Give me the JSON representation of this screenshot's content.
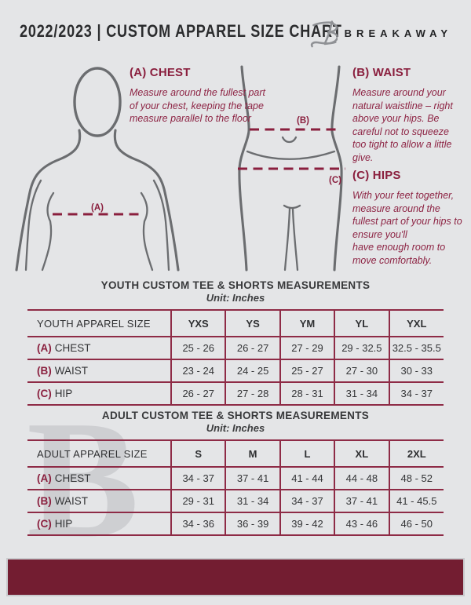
{
  "colors": {
    "background": "#e4e5e7",
    "accent_maroon": "#8a1f3e",
    "table_border": "#8e2b46",
    "footer_bar": "#731d31",
    "figure_gray": "#6b6d70"
  },
  "header": {
    "title": "2022/2023  |  CUSTOM APPAREL SIZE CHART",
    "brand": "BREAKAWAY",
    "logo_icon": "breakaway-b-monogram"
  },
  "guide": {
    "chest": {
      "marker": "(A)",
      "heading": "(A) CHEST",
      "body": "Measure around the fullest part of your chest, keeping the tape measure parallel to the floor"
    },
    "waist": {
      "marker": "(B)",
      "heading": "(B) WAIST",
      "body": "Measure around your natural waistline – right above your hips. Be careful not to squeeze too tight to allow a little give."
    },
    "hips": {
      "marker": "(C)",
      "heading": "(C) HIPS",
      "body": "With your feet together, measure around the fullest part of your hips to ensure you'll\nhave enough room to move comfortably."
    }
  },
  "tables": [
    {
      "type": "table",
      "title": "YOUTH CUSTOM TEE & SHORTS MEASUREMENTS",
      "unit": "Unit: Inches",
      "columns": [
        "YOUTH APPAREL SIZE",
        "YXS",
        "YS",
        "YM",
        "YL",
        "YXL"
      ],
      "rows": [
        {
          "prefix": "(A)",
          "label": "CHEST",
          "values": [
            "25 - 26",
            "26 - 27",
            "27 - 29",
            "29 - 32.5",
            "32.5 - 35.5"
          ]
        },
        {
          "prefix": "(B)",
          "label": "WAIST",
          "values": [
            "23 - 24",
            "24 - 25",
            "25 - 27",
            "27 - 30",
            "30 - 33"
          ]
        },
        {
          "prefix": "(C)",
          "label": "HIP",
          "values": [
            "26 - 27",
            "27 - 28",
            "28 - 31",
            "31 - 34",
            "34 - 37"
          ]
        }
      ]
    },
    {
      "type": "table",
      "title": "ADULT CUSTOM TEE & SHORTS MEASUREMENTS",
      "unit": "Unit: Inches",
      "columns": [
        "ADULT APPAREL SIZE",
        "S",
        "M",
        "L",
        "XL",
        "2XL"
      ],
      "rows": [
        {
          "prefix": "(A)",
          "label": "CHEST",
          "values": [
            "34 - 37",
            "37 - 41",
            "41 - 44",
            "44 - 48",
            "48 - 52"
          ]
        },
        {
          "prefix": "(B)",
          "label": "WAIST",
          "values": [
            "29 - 31",
            "31 - 34",
            "34 - 37",
            "37 - 41",
            "41 - 45.5"
          ]
        },
        {
          "prefix": "(C)",
          "label": "HIP",
          "values": [
            "34 - 36",
            "36 - 39",
            "39 - 42",
            "43 - 46",
            "46 - 50"
          ]
        }
      ]
    }
  ],
  "watermark": {
    "glyph": "B"
  }
}
